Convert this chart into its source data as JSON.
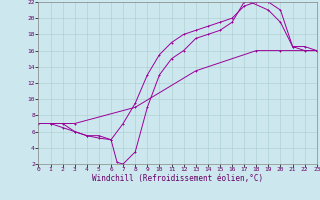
{
  "xlabel": "Windchill (Refroidissement éolien,°C)",
  "bg_color": "#cce8ee",
  "grid_color": "#aacccc",
  "line_color": "#990099",
  "xlim": [
    0,
    23
  ],
  "ylim": [
    2,
    22
  ],
  "xticks": [
    0,
    1,
    2,
    3,
    4,
    5,
    6,
    7,
    8,
    9,
    10,
    11,
    12,
    13,
    14,
    15,
    16,
    17,
    18,
    19,
    20,
    21,
    22,
    23
  ],
  "yticks": [
    2,
    4,
    6,
    8,
    10,
    12,
    14,
    16,
    18,
    20,
    22
  ],
  "line1_x": [
    1,
    2,
    3,
    4,
    5,
    6,
    6.5,
    7,
    8,
    9,
    10,
    11,
    12,
    13,
    14,
    15,
    16,
    17,
    17.5,
    19,
    20,
    21,
    22,
    23
  ],
  "line1_y": [
    7,
    7,
    6,
    5.5,
    5.2,
    5.0,
    2.2,
    2.0,
    3.5,
    9,
    13,
    15,
    16,
    17.5,
    18,
    18.5,
    19.5,
    22,
    22,
    21,
    19.5,
    16.5,
    16,
    16
  ],
  "line2_x": [
    1,
    2,
    3,
    4,
    5,
    6,
    7,
    8,
    9,
    10,
    11,
    12,
    13,
    14,
    15,
    16,
    17,
    18,
    19,
    20,
    21,
    22,
    23
  ],
  "line2_y": [
    7,
    6.5,
    6,
    5.5,
    5.5,
    5,
    7,
    9.5,
    13,
    15.5,
    17,
    18,
    18.5,
    19,
    19.5,
    20,
    21.5,
    22,
    22,
    21,
    16.5,
    16.5,
    16
  ],
  "line3_x": [
    0,
    3,
    8,
    13,
    18,
    20,
    23
  ],
  "line3_y": [
    7,
    7,
    9,
    13.5,
    16,
    16,
    16
  ],
  "tick_fontsize": 4.5,
  "xlabel_fontsize": 5.5,
  "marker_size": 2.0,
  "line_width": 0.7
}
